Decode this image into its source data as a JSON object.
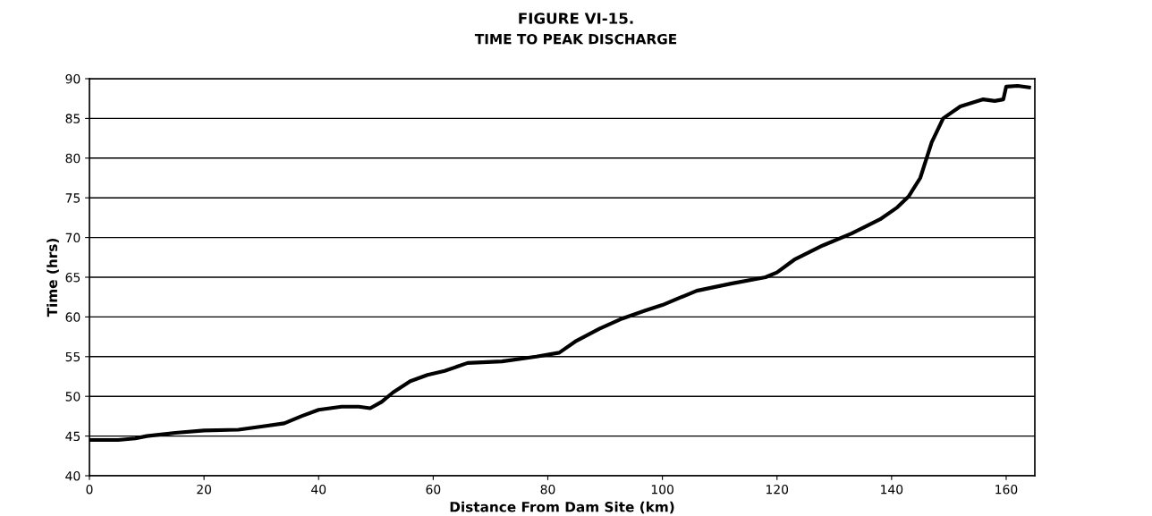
{
  "chart_data": {
    "type": "line",
    "title": "FIGURE VI-15.",
    "subtitle": "TIME TO PEAK DISCHARGE",
    "xlabel": "Distance From Dam Site (km)",
    "ylabel": "Time (hrs)",
    "series": [
      {
        "color": "#000000",
        "x": [
          0,
          5,
          8,
          10,
          15,
          20,
          26,
          30,
          34,
          37,
          40,
          44,
          47,
          49,
          51,
          53,
          56,
          59,
          62,
          66,
          72,
          78,
          82,
          85,
          89,
          93,
          97,
          100,
          106,
          112,
          118,
          120,
          123,
          128,
          133,
          138,
          141,
          143,
          145,
          147,
          149,
          152,
          156,
          158,
          159.5,
          160,
          162,
          164
        ],
        "values": [
          44.5,
          44.5,
          44.7,
          45.0,
          45.4,
          45.7,
          45.8,
          46.2,
          46.6,
          47.5,
          48.3,
          48.7,
          48.7,
          48.5,
          49.3,
          50.5,
          51.9,
          52.7,
          53.2,
          54.2,
          54.4,
          55.0,
          55.5,
          57.0,
          58.5,
          59.8,
          60.8,
          61.5,
          63.3,
          64.2,
          65.0,
          65.6,
          67.2,
          69.0,
          70.5,
          72.3,
          73.8,
          75.2,
          77.5,
          82.0,
          85.0,
          86.5,
          87.4,
          87.2,
          87.4,
          89.0,
          89.1,
          88.9
        ]
      }
    ],
    "xlim": [
      0,
      165
    ],
    "xticks": [
      0,
      20,
      40,
      60,
      80,
      100,
      120,
      140,
      160
    ],
    "ylim": [
      40,
      90
    ],
    "yticks": [
      40,
      45,
      50,
      55,
      60,
      65,
      70,
      75,
      80,
      85,
      90
    ],
    "grid": "y",
    "legend": false,
    "marker": "none",
    "line_style": "solid"
  }
}
